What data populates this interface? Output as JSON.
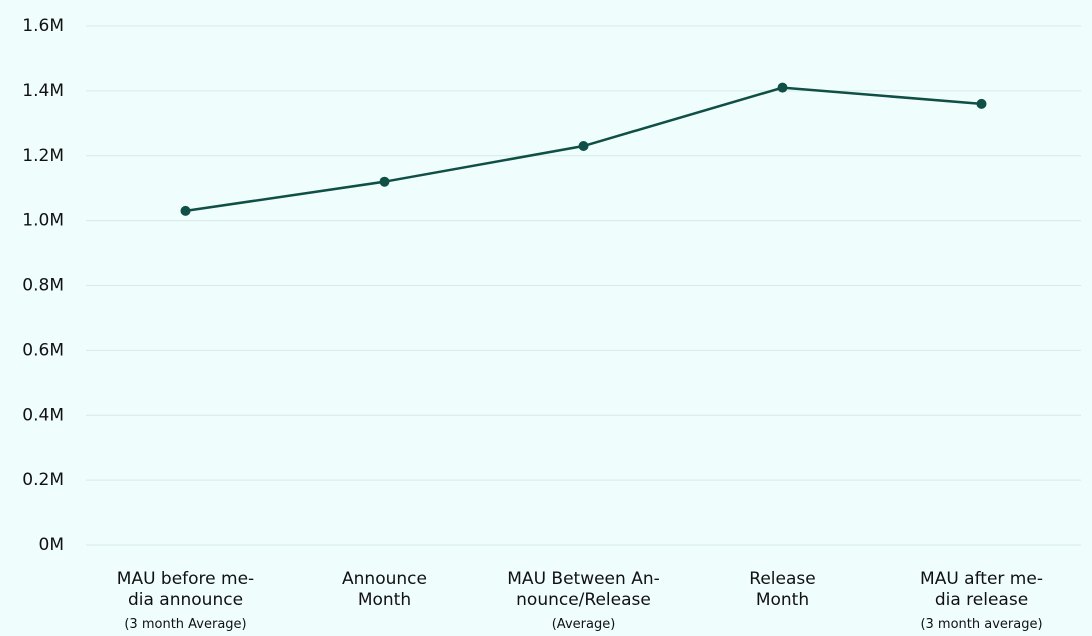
{
  "chart_data": {
    "type": "line",
    "categories": [
      [
        "MAU before me-",
        "dia announce"
      ],
      [
        "Announce",
        "Month"
      ],
      [
        "MAU Between An-",
        "nounce/Release"
      ],
      [
        "Release",
        "Month"
      ],
      [
        "MAU after me-",
        "dia release"
      ]
    ],
    "category_notes": [
      "(3 month Average)",
      null,
      "(Average)",
      null,
      "(3 month average)"
    ],
    "series": [
      {
        "color": "#0f4f45",
        "values": [
          1030000,
          1120000,
          1230000,
          1410000,
          1360000
        ]
      }
    ],
    "ylim": [
      0,
      1600000
    ],
    "yticks": [
      {
        "value": 0,
        "label": "0M"
      },
      {
        "value": 200000,
        "label": "0.2M"
      },
      {
        "value": 400000,
        "label": "0.4M"
      },
      {
        "value": 600000,
        "label": "0.6M"
      },
      {
        "value": 800000,
        "label": "0.8M"
      },
      {
        "value": 1000000,
        "label": "1.0M"
      },
      {
        "value": 1200000,
        "label": "1.2M"
      },
      {
        "value": 1400000,
        "label": "1.4M"
      },
      {
        "value": 1600000,
        "label": "1.6M"
      }
    ],
    "grid": true
  }
}
